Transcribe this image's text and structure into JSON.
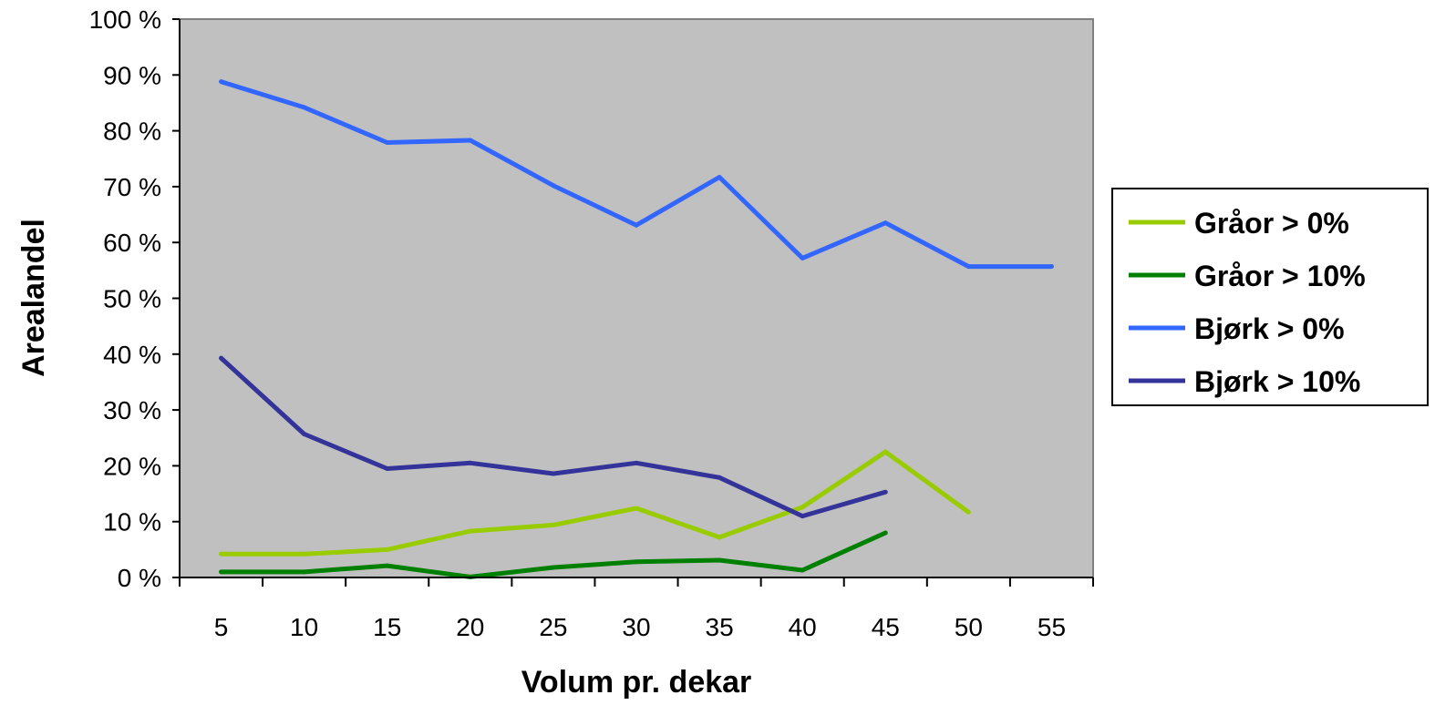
{
  "chart_data": {
    "type": "line",
    "xlabel": "Volum pr. dekar",
    "ylabel": "Arealandel",
    "categories": [
      "5",
      "10",
      "15",
      "20",
      "25",
      "30",
      "35",
      "40",
      "45",
      "50",
      "55"
    ],
    "yticks": [
      "0 %",
      "10 %",
      "20 %",
      "30 %",
      "40 %",
      "50 %",
      "60 %",
      "70 %",
      "80 %",
      "90 %",
      "100 %"
    ],
    "ylim": [
      0,
      100
    ],
    "plot_background": "#c0c0c0",
    "grid": false,
    "legend_position": "right",
    "series": [
      {
        "name": "Gråor > 0%",
        "color": "#99cc00",
        "values": [
          4.2,
          4.2,
          5,
          8.3,
          9.4,
          12.4,
          7.2,
          12.6,
          22.5,
          11.7,
          null
        ]
      },
      {
        "name": "Gråor > 10%",
        "color": "#008000",
        "values": [
          1,
          1,
          2.1,
          0.1,
          1.8,
          2.8,
          3.1,
          1.3,
          8,
          null,
          null
        ]
      },
      {
        "name": "Bjørk > 0%",
        "color": "#3366ff",
        "values": [
          88.8,
          84.2,
          77.9,
          78.3,
          70.2,
          63.1,
          71.7,
          57.2,
          63.5,
          55.7,
          55.7
        ]
      },
      {
        "name": "Bjørk > 10%",
        "color": "#333399",
        "values": [
          39.3,
          25.7,
          19.5,
          20.5,
          18.6,
          20.5,
          17.9,
          11,
          15.3,
          null,
          null
        ]
      }
    ]
  }
}
